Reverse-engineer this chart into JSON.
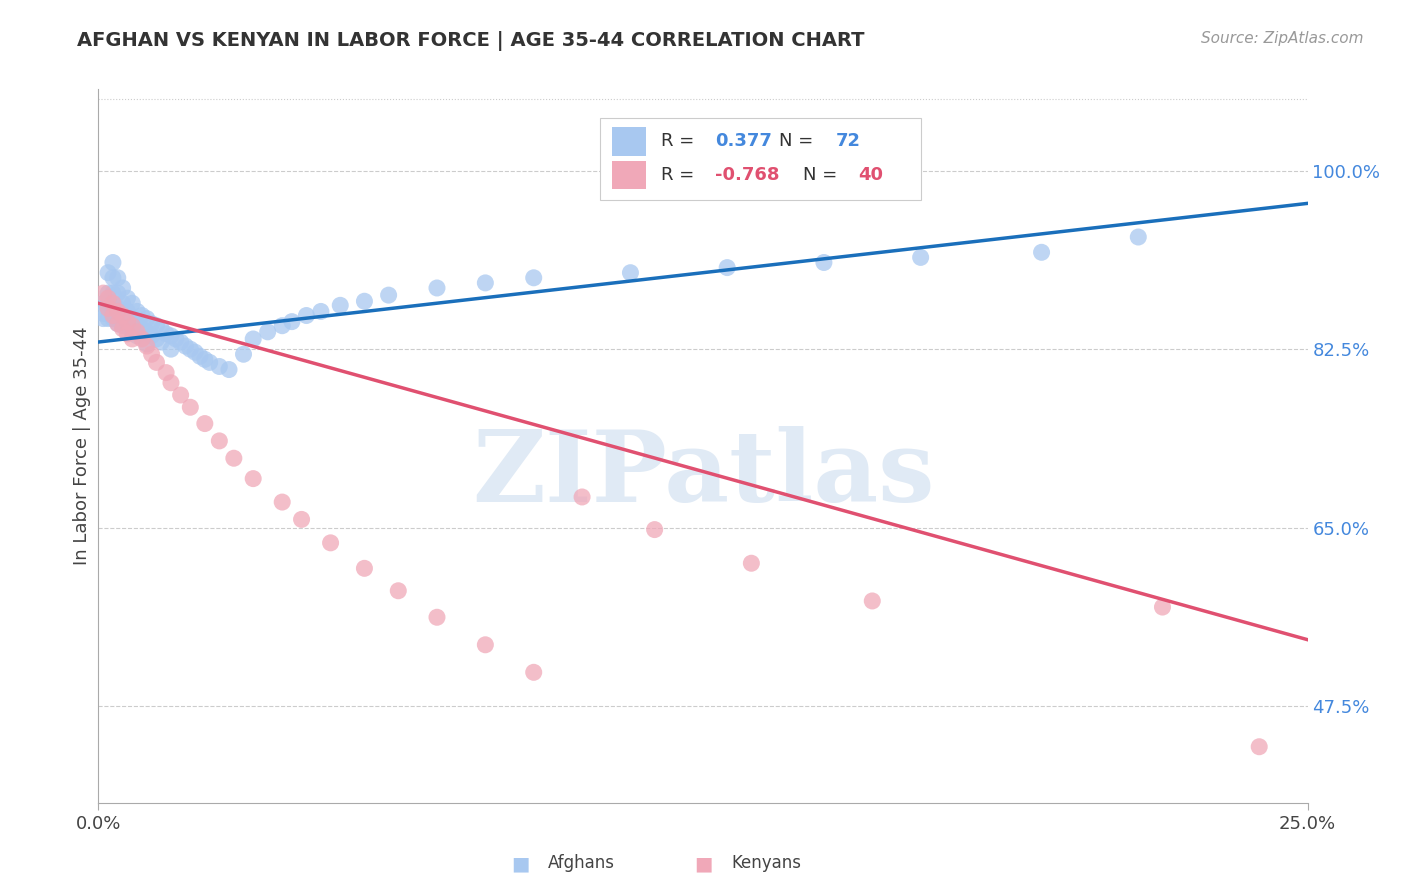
{
  "title": "AFGHAN VS KENYAN IN LABOR FORCE | AGE 35-44 CORRELATION CHART",
  "source": "Source: ZipAtlas.com",
  "ylabel": "In Labor Force | Age 35-44",
  "afghan_color": "#a8c8f0",
  "kenyan_color": "#f0a8b8",
  "afghan_line_color": "#1a6fbb",
  "kenyan_line_color": "#e05070",
  "dashed_line_color": "#88bbee",
  "ytick_labels": [
    "47.5%",
    "65.0%",
    "82.5%",
    "100.0%"
  ],
  "ytick_values": [
    0.475,
    0.65,
    0.825,
    1.0
  ],
  "xlim": [
    0.0,
    0.25
  ],
  "ylim": [
    0.38,
    1.08
  ],
  "watermark_text": "ZIPatlas",
  "legend_R_afghan": "R =",
  "legend_val_afghan": "0.377",
  "legend_N_afghan": "N =",
  "legend_nval_afghan": "72",
  "legend_R_kenyan": "R =",
  "legend_val_kenyan": "-0.768",
  "legend_N_kenyan": "N =",
  "legend_nval_kenyan": "40",
  "afghan_x": [
    0.001,
    0.001,
    0.001,
    0.002,
    0.002,
    0.002,
    0.002,
    0.003,
    0.003,
    0.003,
    0.003,
    0.003,
    0.004,
    0.004,
    0.004,
    0.004,
    0.005,
    0.005,
    0.005,
    0.005,
    0.006,
    0.006,
    0.006,
    0.007,
    0.007,
    0.007,
    0.008,
    0.008,
    0.008,
    0.009,
    0.009,
    0.01,
    0.01,
    0.01,
    0.011,
    0.011,
    0.012,
    0.012,
    0.013,
    0.013,
    0.014,
    0.015,
    0.015,
    0.016,
    0.017,
    0.018,
    0.019,
    0.02,
    0.021,
    0.022,
    0.023,
    0.025,
    0.027,
    0.03,
    0.032,
    0.035,
    0.038,
    0.04,
    0.043,
    0.046,
    0.05,
    0.055,
    0.06,
    0.07,
    0.08,
    0.09,
    0.11,
    0.13,
    0.15,
    0.17,
    0.195,
    0.215
  ],
  "afghan_y": [
    0.87,
    0.86,
    0.855,
    0.9,
    0.88,
    0.87,
    0.855,
    0.91,
    0.895,
    0.88,
    0.865,
    0.855,
    0.895,
    0.88,
    0.865,
    0.85,
    0.885,
    0.87,
    0.86,
    0.848,
    0.875,
    0.862,
    0.85,
    0.87,
    0.855,
    0.842,
    0.862,
    0.85,
    0.838,
    0.858,
    0.845,
    0.855,
    0.842,
    0.83,
    0.85,
    0.838,
    0.848,
    0.835,
    0.845,
    0.832,
    0.84,
    0.838,
    0.825,
    0.835,
    0.832,
    0.828,
    0.825,
    0.822,
    0.818,
    0.815,
    0.812,
    0.808,
    0.805,
    0.82,
    0.835,
    0.842,
    0.848,
    0.852,
    0.858,
    0.862,
    0.868,
    0.872,
    0.878,
    0.885,
    0.89,
    0.895,
    0.9,
    0.905,
    0.91,
    0.915,
    0.92,
    0.935
  ],
  "kenyan_x": [
    0.001,
    0.002,
    0.002,
    0.003,
    0.003,
    0.004,
    0.004,
    0.005,
    0.005,
    0.006,
    0.006,
    0.007,
    0.007,
    0.008,
    0.009,
    0.01,
    0.011,
    0.012,
    0.014,
    0.015,
    0.017,
    0.019,
    0.022,
    0.025,
    0.028,
    0.032,
    0.038,
    0.042,
    0.048,
    0.055,
    0.062,
    0.07,
    0.08,
    0.09,
    0.1,
    0.115,
    0.135,
    0.16,
    0.22,
    0.24
  ],
  "kenyan_y": [
    0.88,
    0.875,
    0.865,
    0.87,
    0.858,
    0.862,
    0.85,
    0.858,
    0.845,
    0.852,
    0.84,
    0.848,
    0.835,
    0.842,
    0.835,
    0.828,
    0.82,
    0.812,
    0.802,
    0.792,
    0.78,
    0.768,
    0.752,
    0.735,
    0.718,
    0.698,
    0.675,
    0.658,
    0.635,
    0.61,
    0.588,
    0.562,
    0.535,
    0.508,
    0.68,
    0.648,
    0.615,
    0.578,
    0.572,
    0.435
  ]
}
